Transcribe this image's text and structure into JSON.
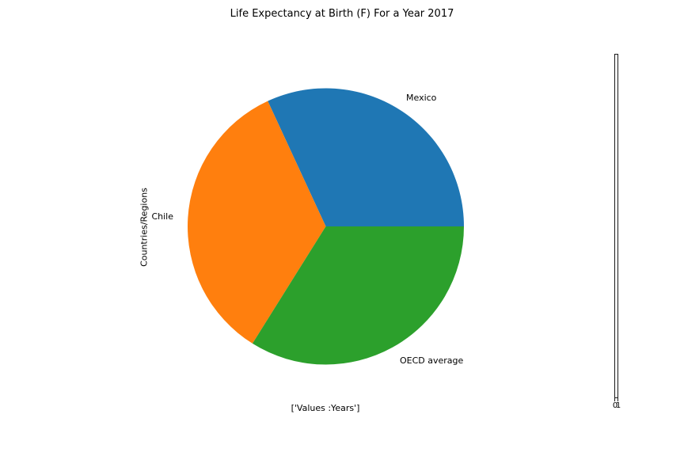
{
  "figure": {
    "title": "Life Expectancy at Birth (F) For a Year 2017"
  },
  "chart_data": {
    "type": "pie",
    "title": "Life Expectancy at Birth (F) For a Year 2017",
    "xlabel": "['Values :Years']",
    "ylabel": "Countries/Regions",
    "categories": [
      "Mexico",
      "Chile",
      "OECD average"
    ],
    "values_percent": [
      31.9,
      34.2,
      33.9
    ],
    "colors": [
      "#1f77b4",
      "#ff7f0e",
      "#2ca02c"
    ],
    "start_angle_deg": 0,
    "direction": "counterclockwise",
    "legend_position": "none",
    "labels_position": "outside",
    "grid": false
  },
  "secondary_axis": {
    "tick_labels": [
      "0",
      "1"
    ]
  }
}
